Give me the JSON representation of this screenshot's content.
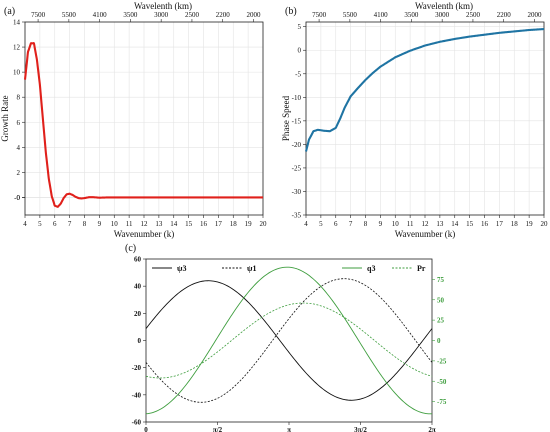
{
  "chart_data": [
    {
      "panel": "(a)",
      "type": "line",
      "xlabel": "Wavenumber (k)",
      "ylabel": "Growth Rate",
      "top_axis_label": "Wavelenth (km)",
      "top_ticks": [
        "7500",
        "5500",
        "4100",
        "3500",
        "3000",
        "2500",
        "2200",
        "2000"
      ],
      "xlim": [
        4,
        20
      ],
      "ylim": [
        -1.4,
        14
      ],
      "xticks": [
        "4",
        "5",
        "6",
        "7",
        "8",
        "9",
        "10",
        "11",
        "12",
        "13",
        "14",
        "15",
        "16",
        "17",
        "18",
        "19",
        "20"
      ],
      "yticks": [
        "-0",
        "0",
        "2",
        "4",
        "6",
        "8",
        "10",
        "12",
        "14"
      ],
      "grid": true,
      "series": [
        {
          "color": "#e0201b",
          "x": [
            4,
            4.2,
            4.4,
            4.6,
            4.8,
            5,
            5.2,
            5.4,
            5.6,
            5.8,
            6,
            6.2,
            6.4,
            6.6,
            6.8,
            7,
            7.2,
            7.4,
            7.6,
            7.8,
            8,
            8.3,
            8.6,
            9,
            9.5,
            10,
            12,
            14,
            16,
            18,
            20
          ],
          "y": [
            9.4,
            11.6,
            12.3,
            12.3,
            11.0,
            9.0,
            6.3,
            3.6,
            1.5,
            0.1,
            -0.65,
            -0.75,
            -0.5,
            -0.05,
            0.25,
            0.3,
            0.2,
            0.05,
            -0.05,
            -0.08,
            -0.05,
            0.02,
            0.02,
            -0.02,
            0.0,
            0.0,
            0.0,
            0.0,
            0.0,
            0.0,
            0.0
          ]
        }
      ]
    },
    {
      "panel": "(b)",
      "type": "line",
      "xlabel": "Wavenumber (k)",
      "ylabel": "Phase Speed",
      "top_axis_label": "Wavelenth (km)",
      "top_ticks": [
        "7500",
        "5500",
        "4100",
        "3500",
        "3000",
        "2500",
        "2200",
        "2000"
      ],
      "xlim": [
        4,
        20
      ],
      "ylim": [
        -35,
        6
      ],
      "xticks": [
        "4",
        "5",
        "6",
        "7",
        "8",
        "9",
        "10",
        "11",
        "12",
        "13",
        "14",
        "15",
        "16",
        "17",
        "18",
        "19",
        "20"
      ],
      "yticks": [
        "-35",
        "-30",
        "-25",
        "-20",
        "-15",
        "-10",
        "-5",
        "0",
        "5"
      ],
      "grid": true,
      "series": [
        {
          "color": "#1f74a3",
          "x": [
            4,
            4.2,
            4.5,
            4.8,
            5.2,
            5.6,
            6,
            6.3,
            6.6,
            7,
            7.5,
            8,
            8.5,
            9,
            10,
            11,
            12,
            13,
            14,
            15,
            16,
            17,
            18,
            19,
            20
          ],
          "y": [
            -21.5,
            -19,
            -17.2,
            -16.9,
            -17.1,
            -17.2,
            -16.5,
            -14.5,
            -12.2,
            -9.8,
            -8.0,
            -6.3,
            -4.8,
            -3.5,
            -1.5,
            -0.1,
            1.0,
            1.8,
            2.4,
            2.9,
            3.3,
            3.7,
            4.0,
            4.3,
            4.5
          ]
        }
      ]
    },
    {
      "panel": "(c)",
      "type": "line",
      "xlim": [
        0,
        6.2832
      ],
      "ylim": [
        -60,
        60
      ],
      "y2lim": [
        -100,
        100
      ],
      "xtick_values": [
        0,
        1.5708,
        3.1416,
        4.7124,
        6.2832
      ],
      "xticks": [
        "0",
        "π/2",
        "π",
        "3π/2",
        "2π"
      ],
      "yticks": [
        "-60",
        "-40",
        "-20",
        "0",
        "20",
        "40",
        "60"
      ],
      "y2ticks": [
        "-75",
        "-50",
        "-25",
        "0",
        "25",
        "50",
        "75"
      ],
      "grid": false,
      "legend": [
        {
          "name": "ψ3",
          "color": "#111111",
          "dash": "solid"
        },
        {
          "name": "ψ1",
          "color": "#111111",
          "dash": "dashed"
        },
        {
          "name": "q3",
          "color": "#3f9e3f",
          "dash": "solid"
        },
        {
          "name": "Pr",
          "color": "#3f9e3f",
          "dash": "dashed"
        }
      ],
      "series": [
        {
          "name": "ψ3",
          "axis": "left",
          "amplitude": 44,
          "peak_at": 1.37,
          "color": "#111111",
          "dash": "solid"
        },
        {
          "name": "ψ1",
          "axis": "left",
          "amplitude": 45.5,
          "peak_at": 4.35,
          "color": "#111111",
          "dash": "dashed"
        },
        {
          "name": "q3",
          "axis": "right",
          "amplitude": 90,
          "peak_at": 3.1,
          "color": "#3f9e3f",
          "dash": "solid"
        },
        {
          "name": "Pr",
          "axis": "right",
          "amplitude": 46,
          "peak_at": 3.45,
          "color": "#3f9e3f",
          "dash": "dashed"
        }
      ]
    }
  ]
}
